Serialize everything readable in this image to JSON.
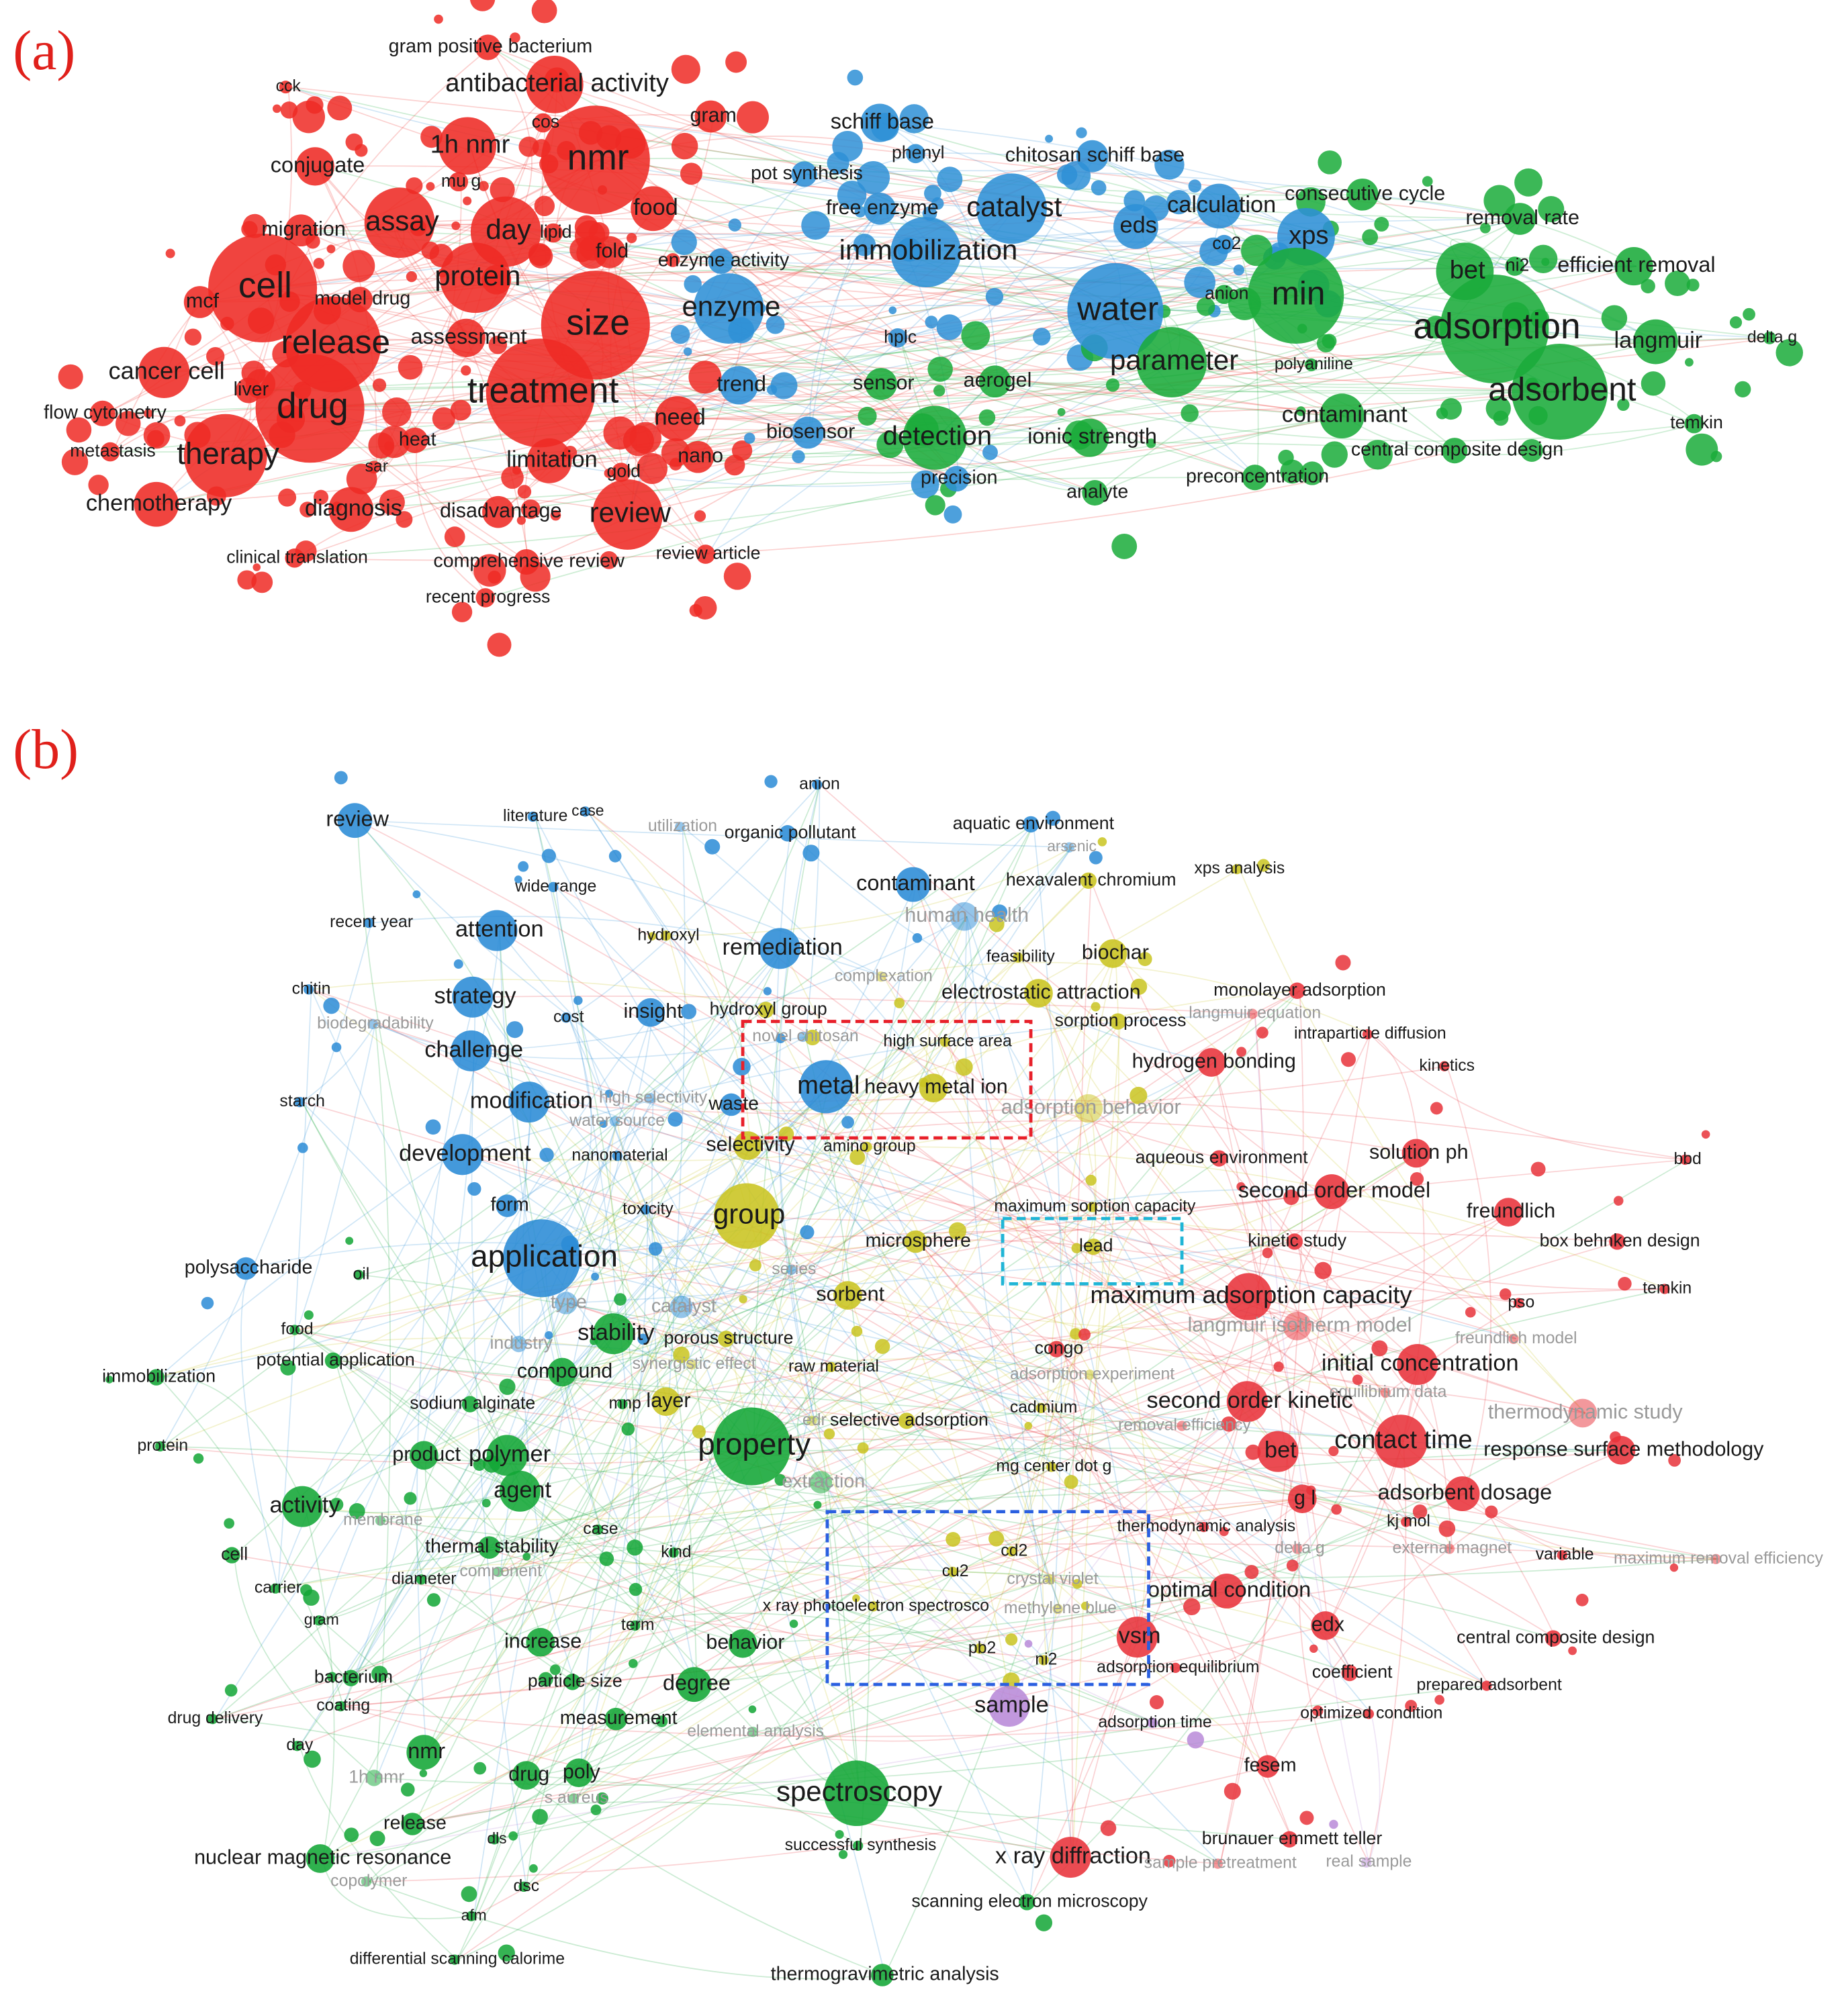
{
  "panels": [
    {
      "label": "(a)",
      "clusters": [
        {
          "color": "#ee2a24",
          "nodes": [
            "gram positive bacterium",
            "cck",
            "antibacterial activity",
            "cos",
            "gram",
            "1h nmr",
            "nmr",
            "conjugate",
            "mu g",
            "food",
            "migration",
            "assay",
            "day",
            "lipid",
            "fold",
            "cell",
            "protein",
            "mcf",
            "model drug",
            "release",
            "assessment",
            "size",
            "cancer cell",
            "liver",
            "treatment",
            "drug",
            "need",
            "flow cytometry",
            "heat",
            "metastasis",
            "therapy",
            "limitation",
            "sar",
            "gold",
            "nano",
            "chemotherapy",
            "diagnosis",
            "disadvantage",
            "review",
            "clinical translation",
            "comprehensive review",
            "review article",
            "recent progress"
          ]
        },
        {
          "color": "#2e8fd6",
          "nodes": [
            "schiff base",
            "phenyl",
            "pot synthesis",
            "chitosan schiff base",
            "free enzyme",
            "catalyst",
            "enzyme activity",
            "immobilization",
            "calculation",
            "eds",
            "co2",
            "enzyme",
            "hplc",
            "water",
            "xps",
            "trend",
            "biosensor",
            "precision"
          ]
        },
        {
          "color": "#1aab3a",
          "nodes": [
            "consecutive cycle",
            "removal rate",
            "min",
            "anion",
            "bet",
            "ni2",
            "efficient removal",
            "adsorption",
            "langmuir",
            "delta g",
            "parameter",
            "polyaniline",
            "adsorbent",
            "sensor",
            "aerogel",
            "contaminant",
            "temkin",
            "detection",
            "ionic strength",
            "central composite design",
            "analyte",
            "preconcentration"
          ]
        }
      ]
    },
    {
      "label": "(b)",
      "clusters": [
        {
          "color": "#2a8bd6",
          "nodes": [
            "anion",
            "review",
            "literature",
            "case",
            "utilization",
            "organic pollutant",
            "aquatic environment",
            "arsenic",
            "wide range",
            "contaminant",
            "recent year",
            "attention",
            "human health",
            "remediation",
            "chitin",
            "strategy",
            "cost",
            "insight",
            "biodegradability",
            "challenge",
            "novel chitosan",
            "starch",
            "modification",
            "metal",
            "high selectivity",
            "waste",
            "water source",
            "development",
            "nanomaterial",
            "form",
            "toxicity",
            "application",
            "polysaccharide",
            "series",
            "type",
            "catalyst",
            "industry"
          ]
        },
        {
          "color": "#c9c420",
          "nodes": [
            "hexavalent chromium",
            "xps analysis",
            "hydroxyl",
            "feasibility",
            "biochar",
            "complexation",
            "electrostatic attraction",
            "hydroxyl group",
            "sorption process",
            "high surface area",
            "heavy metal ion",
            "adsorption behavior",
            "selectivity",
            "amino group",
            "group",
            "maximum sorption capacity",
            "microsphere",
            "lead",
            "sorbent",
            "porous structure",
            "synergistic effect",
            "raw material",
            "adsorption experiment",
            "layer",
            "cadmium",
            "edr",
            "selective adsorption",
            "mg center dot g",
            "cd2",
            "cu2",
            "crystal violet",
            "x ray photoelectron spectrosco",
            "methylene blue",
            "pb2",
            "ni2"
          ]
        },
        {
          "color": "#e8323a",
          "nodes": [
            "monolayer adsorption",
            "langmuir equation",
            "intraparticle diffusion",
            "hydrogen bonding",
            "kinetics",
            "aqueous environment",
            "solution ph",
            "bbd",
            "second order model",
            "freundlich",
            "kinetic study",
            "box behnken design",
            "maximum adsorption capacity",
            "temkin",
            "pso",
            "langmuir isotherm model",
            "freundlich model",
            "congo",
            "initial concentration",
            "equilibrium data",
            "second order kinetic",
            "thermodynamic study",
            "removal efficiency",
            "bet",
            "contact time",
            "response surface methodology",
            "adsorbent dosage",
            "g l",
            "kj mol",
            "thermodynamic analysis",
            "delta g",
            "external magnet",
            "variable",
            "maximum removal efficiency",
            "optimal condition",
            "edx",
            "vsm",
            "central composite design",
            "adsorption equilibrium",
            "coefficient",
            "prepared adsorbent",
            "optimized condition",
            "fesem",
            "brunauer emmett teller",
            "x ray diffraction",
            "sample pretreatment"
          ]
        },
        {
          "color": "#12a635",
          "nodes": [
            "oil",
            "food",
            "stability",
            "compound",
            "potential application",
            "immobilization",
            "sodium alginate",
            "mnp",
            "protein",
            "property",
            "product",
            "polymer",
            "extraction",
            "agent",
            "activity",
            "membrane",
            "thermal stability",
            "case",
            "kind",
            "cell",
            "component",
            "diameter",
            "carrier",
            "gram",
            "term",
            "increase",
            "behavior",
            "bacterium",
            "particle size",
            "degree",
            "coating",
            "drug delivery",
            "measurement",
            "elemental analysis",
            "day",
            "nmr",
            "1h nmr",
            "drug",
            "poly",
            "s aureus",
            "spectroscopy",
            "release",
            "dls",
            "successful synthesis",
            "nuclear magnetic resonance",
            "copolymer",
            "dsc",
            "scanning electron microscopy",
            "afm",
            "differential scanning calorime",
            "thermogravimetric analysis"
          ]
        },
        {
          "color": "#b88ad8",
          "nodes": [
            "sample",
            "adsorption time",
            "real sample"
          ]
        }
      ]
    }
  ]
}
